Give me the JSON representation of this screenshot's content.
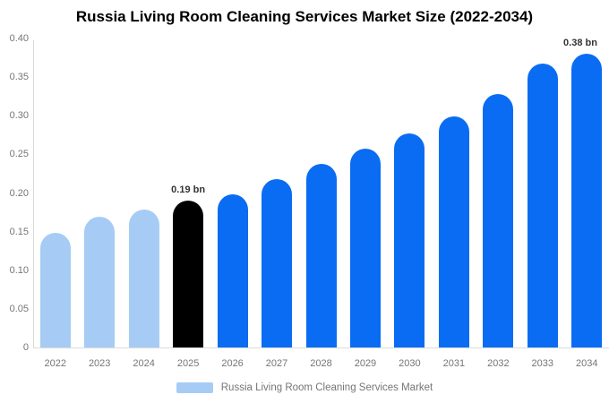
{
  "chart_data": {
    "type": "bar",
    "title": "Russia Living Room Cleaning Services Market Size (2022-2034)",
    "categories": [
      "2022",
      "2023",
      "2024",
      "2025",
      "2026",
      "2027",
      "2028",
      "2029",
      "2030",
      "2031",
      "2032",
      "2033",
      "2034"
    ],
    "values": [
      0.148,
      0.169,
      0.179,
      0.19,
      0.198,
      0.218,
      0.238,
      0.257,
      0.277,
      0.299,
      0.328,
      0.367,
      0.38
    ],
    "bar_colors": [
      "#a6ccf5",
      "#a6ccf5",
      "#a6ccf5",
      "#000000",
      "#0a6cf2",
      "#0a6cf2",
      "#0a6cf2",
      "#0a6cf2",
      "#0a6cf2",
      "#0a6cf2",
      "#0a6cf2",
      "#0a6cf2",
      "#0a6cf2"
    ],
    "ylim": [
      0,
      0.4
    ],
    "y_ticks": [
      {
        "label": "0",
        "value": 0
      },
      {
        "label": "0.05",
        "value": 0.05
      },
      {
        "label": "0.10",
        "value": 0.1
      },
      {
        "label": "0.15",
        "value": 0.15
      },
      {
        "label": "0.20",
        "value": 0.2
      },
      {
        "label": "0.25",
        "value": 0.25
      },
      {
        "label": "0.30",
        "value": 0.3
      },
      {
        "label": "0.35",
        "value": 0.35
      },
      {
        "label": "0.40",
        "value": 0.4
      }
    ],
    "annotations": [
      {
        "index": 3,
        "text": "0.19 bn"
      },
      {
        "index": 12,
        "text": "0.38 bn"
      }
    ],
    "grid": false,
    "legend_position": "bottom",
    "legend": {
      "items": [
        {
          "label": "Russia Living Room Cleaning Services Market",
          "color": "#a6ccf5"
        }
      ]
    }
  },
  "colors": {
    "forecast_blue": "#0a6cf2",
    "history_light_blue": "#a6ccf5",
    "highlight_black": "#000000",
    "axis_text_gray": "#757575",
    "axis_line_gray": "#d9d9d9",
    "value_label_gray": "#333333",
    "background": "#ffffff"
  }
}
